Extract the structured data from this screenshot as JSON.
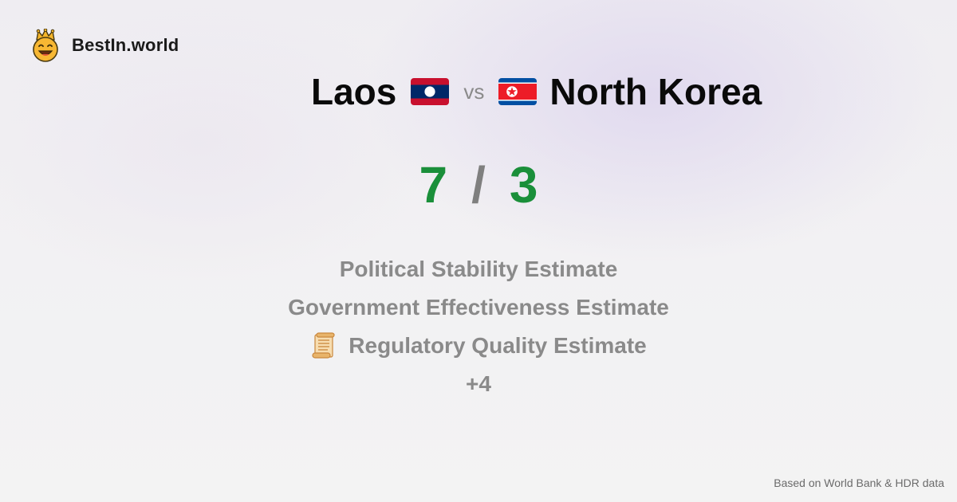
{
  "brand": {
    "name": "BestIn.world",
    "logo_icon": "crown-smiley-icon"
  },
  "comparison": {
    "country_a": "Laos",
    "country_b": "North Korea",
    "vs_label": "vs",
    "flag_a_icon": "laos-flag-icon",
    "flag_b_icon": "north-korea-flag-icon"
  },
  "score": {
    "a": "7",
    "separator": "/",
    "b": "3",
    "color": "#1a8f3a"
  },
  "metrics": [
    {
      "label": "Political Stability Estimate"
    },
    {
      "label": "Government Effectiveness Estimate"
    },
    {
      "label": "Regulatory Quality Estimate",
      "icon": "scroll-icon"
    }
  ],
  "more_label": "+4",
  "footer": {
    "note": "Based on World Bank & HDR data"
  }
}
